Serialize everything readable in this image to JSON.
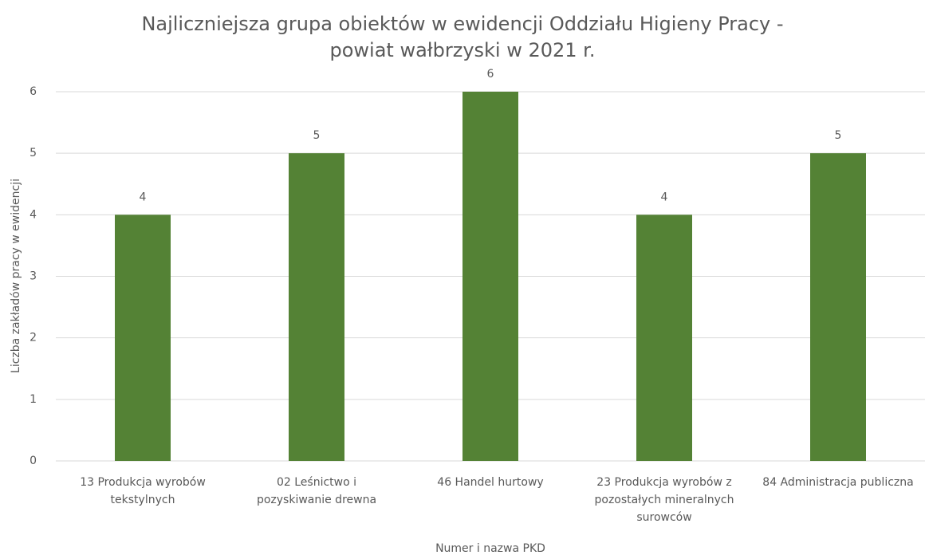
{
  "chart_data": {
    "type": "bar",
    "title": "Najliczniejsza grupa obiektów w ewidencji Oddziału Higieny Pracy - powiat wałbrzyski w 2021 r.",
    "x_label": "Numer i nazwa PKD",
    "y_label": "Liczba zakładów pracy w ewidencji",
    "categories": [
      "13 Produkcja wyrobów tekstylnych",
      "02 Leśnictwo i pozyskiwanie drewna",
      "46 Handel hurtowy",
      "23 Produkcja wyrobów z pozostałych mineralnych surowców",
      "84 Administracja publiczna"
    ],
    "values": [
      4,
      5,
      6,
      4,
      5
    ],
    "color": "#548235",
    "ylim": [
      0,
      6
    ],
    "yticks": [
      0,
      1,
      2,
      3,
      4,
      5,
      6
    ],
    "grid": true
  }
}
